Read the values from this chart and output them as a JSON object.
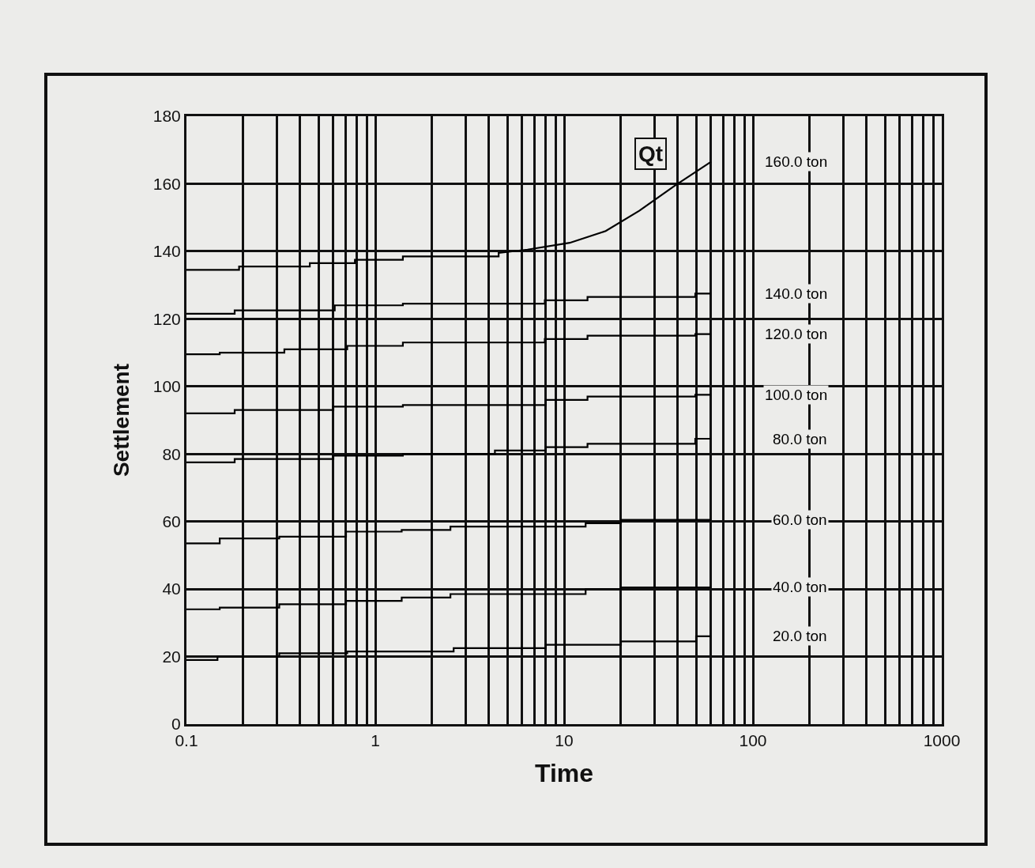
{
  "chart_data": {
    "type": "line",
    "xlabel": "Time",
    "ylabel": "Settlement",
    "log": "x",
    "grid": true,
    "marker": "none",
    "line_style": "solid",
    "xlim": [
      0.1,
      1000
    ],
    "ylim": [
      0,
      180
    ],
    "xticks": [
      {
        "value": 0.1,
        "label": "0.1"
      },
      {
        "value": 0.2,
        "label": null
      },
      {
        "value": 0.3,
        "label": null
      },
      {
        "value": 0.4,
        "label": null
      },
      {
        "value": 0.5,
        "label": null
      },
      {
        "value": 0.6,
        "label": null
      },
      {
        "value": 0.7,
        "label": null
      },
      {
        "value": 0.8,
        "label": null
      },
      {
        "value": 0.9,
        "label": null
      },
      1,
      {
        "value": 2,
        "label": null
      },
      {
        "value": 3,
        "label": null
      },
      {
        "value": 4,
        "label": null
      },
      {
        "value": 5,
        "label": null
      },
      {
        "value": 6,
        "label": null
      },
      {
        "value": 7,
        "label": null
      },
      {
        "value": 8,
        "label": null
      },
      {
        "value": 9,
        "label": null
      },
      10,
      {
        "value": 20,
        "label": null
      },
      {
        "value": 30,
        "label": null
      },
      {
        "value": 40,
        "label": null
      },
      {
        "value": 50,
        "label": null
      },
      {
        "value": 60,
        "label": null
      },
      {
        "value": 70,
        "label": null
      },
      {
        "value": 80,
        "label": null
      },
      {
        "value": 90,
        "label": null
      },
      100,
      {
        "value": 200,
        "label": null
      },
      {
        "value": 300,
        "label": null
      },
      {
        "value": 400,
        "label": null
      },
      {
        "value": 500,
        "label": null
      },
      {
        "value": 600,
        "label": null
      },
      {
        "value": 700,
        "label": null
      },
      {
        "value": 800,
        "label": null
      },
      {
        "value": 900,
        "label": null
      },
      1000
    ],
    "yticks": [
      0,
      20,
      40,
      60,
      80,
      100,
      120,
      140,
      160,
      180
    ],
    "annotations": [
      "Qt"
    ],
    "series": [
      {
        "name": "160.0 ton",
        "color": "#000000",
        "x": [
          0.1,
          0.19,
          0.19,
          0.45,
          0.45,
          0.78,
          0.78,
          1.4,
          1.4,
          4.5,
          4.5,
          6.4,
          10.7,
          16.6,
          25,
          38.7,
          60
        ],
        "values": [
          134.5,
          134.5,
          135.5,
          135.5,
          136.5,
          136.5,
          137.5,
          137.5,
          138.5,
          138.5,
          139.5,
          140.5,
          142.5,
          146,
          152,
          159.5,
          166.5
        ]
      },
      {
        "name": "140.0 ton",
        "color": "#000000",
        "x": [
          0.1,
          0.18,
          0.18,
          0.61,
          0.61,
          1.4,
          1.4,
          7.9,
          7.9,
          13.3,
          13.3,
          49.5,
          49.5,
          60
        ],
        "values": [
          121.5,
          121.5,
          122.5,
          122.5,
          124,
          124,
          124.5,
          124.5,
          125.5,
          125.5,
          126.5,
          126.5,
          127.5,
          127.5
        ]
      },
      {
        "name": "120.0 ton",
        "color": "#000000",
        "x": [
          0.1,
          0.15,
          0.15,
          0.33,
          0.33,
          0.71,
          0.71,
          1.4,
          1.4,
          7.9,
          7.9,
          13.3,
          13.3,
          49.5,
          49.5,
          60
        ],
        "values": [
          109.5,
          109.5,
          110,
          110,
          111,
          111,
          112,
          112,
          113,
          113,
          114,
          114,
          115,
          115,
          115.5,
          115.5
        ]
      },
      {
        "name": "100.0 ton",
        "color": "#000000",
        "x": [
          0.1,
          0.18,
          0.18,
          0.6,
          0.6,
          1.4,
          1.4,
          8,
          8,
          13.3,
          13.3,
          49.5,
          49.5,
          60
        ],
        "values": [
          92,
          92,
          93,
          93,
          94,
          94,
          94.5,
          94.5,
          96,
          96,
          97,
          97,
          97.5,
          97.5
        ]
      },
      {
        "name": "80.0 ton",
        "color": "#000000",
        "x": [
          0.1,
          0.18,
          0.18,
          0.6,
          0.6,
          1.4,
          1.4,
          4.3,
          4.3,
          8,
          8,
          13.3,
          13.3,
          49.5,
          49.5,
          60
        ],
        "values": [
          77.5,
          77.5,
          78.5,
          78.5,
          79.5,
          79.5,
          80,
          80,
          81,
          81,
          82,
          82,
          83,
          83,
          84.5,
          84.5
        ]
      },
      {
        "name": "60.0 ton",
        "color": "#000000",
        "x": [
          0.1,
          0.15,
          0.15,
          0.31,
          0.31,
          0.7,
          0.7,
          1.38,
          1.38,
          2.5,
          2.5,
          13,
          13,
          20,
          20,
          60
        ],
        "values": [
          53.5,
          53.5,
          55,
          55,
          55.5,
          55.5,
          57,
          57,
          57.5,
          57.5,
          58.5,
          58.5,
          59.5,
          59.5,
          60.5,
          60.5
        ]
      },
      {
        "name": "40.0 ton",
        "color": "#000000",
        "x": [
          0.1,
          0.15,
          0.15,
          0.31,
          0.31,
          0.7,
          0.7,
          1.38,
          1.38,
          2.5,
          2.5,
          13,
          13,
          20,
          20,
          60
        ],
        "values": [
          34,
          34,
          34.5,
          34.5,
          35.5,
          35.5,
          36.5,
          36.5,
          37.5,
          37.5,
          38.5,
          38.5,
          40,
          40,
          40.5,
          40.5
        ]
      },
      {
        "name": "20.0 ton",
        "color": "#000000",
        "x": [
          0.1,
          0.146,
          0.146,
          0.31,
          0.31,
          0.71,
          0.71,
          2.6,
          2.6,
          8,
          8,
          20,
          20,
          50,
          50,
          60
        ],
        "values": [
          19,
          19,
          20,
          20,
          21,
          21,
          21.5,
          21.5,
          22.5,
          22.5,
          23.5,
          23.5,
          24.5,
          24.5,
          26,
          26
        ]
      }
    ]
  }
}
